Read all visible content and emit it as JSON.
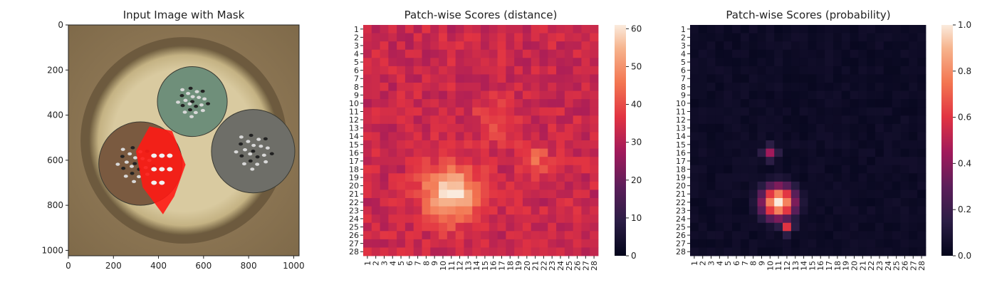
{
  "chart_data": [
    {
      "type": "image",
      "title": "Input Image with Mask",
      "xlim": [
        0,
        1024
      ],
      "ylim": [
        1024,
        0
      ],
      "xticks": [
        0,
        200,
        400,
        600,
        800,
        1000
      ],
      "yticks": [
        0,
        200,
        400,
        600,
        800,
        1000
      ],
      "objects": [
        {
          "name": "bowl",
          "cx": 512,
          "cy": 512,
          "r": 420
        },
        {
          "name": "green-ball",
          "cx": 550,
          "cy": 340,
          "r": 155
        },
        {
          "name": "grey-ball",
          "cx": 820,
          "cy": 560,
          "r": 185
        },
        {
          "name": "brown-ball",
          "cx": 320,
          "cy": 615,
          "r": 185
        }
      ],
      "colors": {
        "background": "#8a7556",
        "bowl": "#e8dcb4",
        "mask": "#ff1a14"
      }
    },
    {
      "type": "heatmap",
      "title": "Patch-wise Scores (distance)",
      "rows": 28,
      "cols": 28,
      "xticklabels": [
        "1",
        "2",
        "3",
        "4",
        "5",
        "6",
        "7",
        "8",
        "9",
        "10",
        "11",
        "12",
        "13",
        "14",
        "15",
        "16",
        "17",
        "18",
        "19",
        "20",
        "21",
        "22",
        "23",
        "24",
        "25",
        "26",
        "27",
        "28"
      ],
      "yticklabels": [
        "1",
        "2",
        "3",
        "4",
        "5",
        "6",
        "7",
        "8",
        "9",
        "10",
        "11",
        "12",
        "13",
        "14",
        "15",
        "16",
        "17",
        "18",
        "19",
        "20",
        "21",
        "22",
        "23",
        "24",
        "25",
        "26",
        "27",
        "28"
      ],
      "colorbar": {
        "min": 0,
        "max": 61,
        "ticks": [
          0,
          10,
          20,
          30,
          40,
          50,
          60
        ]
      },
      "base_value": 33,
      "hotspots": [
        {
          "row": 21,
          "col": 11,
          "value": 61,
          "spread": 3.2
        },
        {
          "row": 17,
          "col": 21,
          "value": 44,
          "spread": 1.8
        },
        {
          "row": 12,
          "col": 16,
          "value": 39,
          "spread": 2.5
        }
      ],
      "colormap": "rocket"
    },
    {
      "type": "heatmap",
      "title": "Patch-wise Scores (probability)",
      "rows": 28,
      "cols": 28,
      "xticklabels": [
        "1",
        "2",
        "3",
        "4",
        "5",
        "6",
        "7",
        "8",
        "9",
        "10",
        "11",
        "12",
        "13",
        "14",
        "15",
        "16",
        "17",
        "18",
        "19",
        "20",
        "21",
        "22",
        "23",
        "24",
        "25",
        "26",
        "27",
        "28"
      ],
      "yticklabels": [
        "1",
        "2",
        "3",
        "4",
        "5",
        "6",
        "7",
        "8",
        "9",
        "10",
        "11",
        "12",
        "13",
        "14",
        "15",
        "16",
        "17",
        "18",
        "19",
        "20",
        "21",
        "22",
        "23",
        "24",
        "25",
        "26",
        "27",
        "28"
      ],
      "colorbar": {
        "min": 0.0,
        "max": 1.0,
        "ticks": [
          "0.0",
          "0.2",
          "0.4",
          "0.6",
          "0.8",
          "1.0"
        ]
      },
      "base_value": 0.02,
      "hotspots": [
        {
          "row": 22,
          "col": 11,
          "value": 1.0,
          "spread": 1.9
        },
        {
          "row": 16,
          "col": 10,
          "value": 0.45,
          "spread": 0.9
        },
        {
          "row": 25,
          "col": 12,
          "value": 0.6,
          "spread": 0.8
        }
      ],
      "colormap": "rocket"
    }
  ]
}
